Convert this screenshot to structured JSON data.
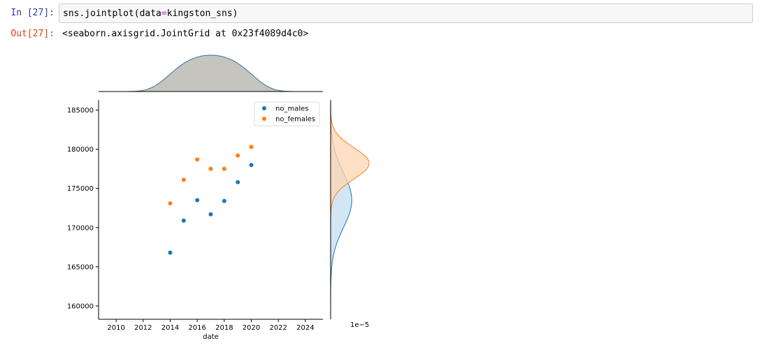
{
  "cell": {
    "in_prompt": "In [27]:",
    "code_prefix": "sns.jointplot(data",
    "code_op": "=",
    "code_suffix": "kingston_sns)",
    "out_prompt": "Out[27]:",
    "output_text": "<seaborn.axisgrid.JointGrid at 0x23f4089d4c0>"
  },
  "chart_data": {
    "type": "scatter",
    "xlabel": "date",
    "ylabel": "",
    "xlim": [
      2008.7,
      2025.3
    ],
    "ylim": [
      158300,
      186300
    ],
    "xticks": [
      2010,
      2012,
      2014,
      2016,
      2018,
      2020,
      2022,
      2024
    ],
    "yticks": [
      160000,
      165000,
      170000,
      175000,
      180000,
      185000
    ],
    "offset_label": "1e−5",
    "legend_position": "top-right",
    "grid": false,
    "series": [
      {
        "name": "no_males",
        "color": "#1f77b4",
        "x": [
          2014,
          2015,
          2016,
          2017,
          2018,
          2019,
          2020
        ],
        "y": [
          166800,
          170900,
          173500,
          171700,
          173400,
          175800,
          178000
        ]
      },
      {
        "name": "no_females",
        "color": "#ff7f0e",
        "x": [
          2014,
          2015,
          2016,
          2017,
          2018,
          2019,
          2020
        ],
        "y": [
          173100,
          176100,
          178700,
          177500,
          177500,
          179200,
          180300
        ]
      }
    ],
    "marginal_x": {
      "color": "#3b6fa0",
      "fill": "#c6c4bf",
      "center": 2017,
      "sd": 2.45
    },
    "marginal_y": [
      {
        "name": "no_males",
        "color": "#1f77b4",
        "fill": "#c6dcef",
        "center": 173500,
        "sd": 3500
      },
      {
        "name": "no_females",
        "color": "#ff7f0e",
        "fill": "#ffd6b3",
        "center": 178200,
        "sd": 2000
      }
    ]
  }
}
